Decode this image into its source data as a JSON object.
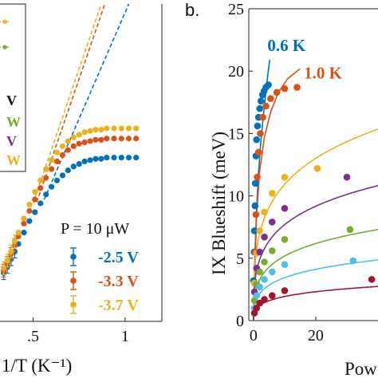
{
  "chart_data": [
    {
      "panel": "left",
      "type": "scatter",
      "xlabel": "1/T (K⁻¹)",
      "ylabel": "",
      "xlim": [
        0.32,
        1.2
      ],
      "ylim": [
        0,
        25
      ],
      "xticks": [
        {
          "value": 0.5,
          "label": ".5"
        },
        {
          "value": 1.0,
          "label": "1"
        }
      ],
      "legend_title": "P = 10 μW",
      "legend_title_color": "#111111",
      "series": [
        {
          "name": "-2.5 V",
          "color": "#0072BD",
          "x": [
            0.34,
            0.36,
            0.38,
            0.4,
            0.42,
            0.45,
            0.48,
            0.51,
            0.54,
            0.57,
            0.6,
            0.63,
            0.66,
            0.69,
            0.72,
            0.75,
            0.78,
            0.81,
            0.84,
            0.87,
            0.9,
            0.94,
            0.98,
            1.02,
            1.06
          ],
          "y": [
            3.8,
            4.3,
            4.9,
            5.5,
            6.1,
            7.0,
            7.9,
            8.6,
            9.3,
            10.0,
            10.6,
            11.1,
            11.5,
            11.9,
            12.2,
            12.4,
            12.6,
            12.7,
            12.8,
            12.8,
            12.9,
            12.9,
            12.9,
            12.9,
            12.9
          ]
        },
        {
          "name": "-3.3 V",
          "color": "#D95319",
          "x": [
            0.34,
            0.36,
            0.38,
            0.4,
            0.42,
            0.45,
            0.48,
            0.51,
            0.54,
            0.57,
            0.6,
            0.63,
            0.66,
            0.69,
            0.72,
            0.75,
            0.78,
            0.81,
            0.84,
            0.87,
            0.9,
            0.94,
            0.98,
            1.02,
            1.06
          ],
          "y": [
            4.0,
            4.6,
            5.3,
            6.0,
            6.7,
            7.7,
            8.7,
            9.6,
            10.5,
            11.3,
            12.0,
            12.6,
            13.1,
            13.5,
            13.8,
            14.0,
            14.1,
            14.2,
            14.3,
            14.3,
            14.4,
            14.4,
            14.4,
            14.4,
            14.4
          ]
        },
        {
          "name": "-3.7 V",
          "color": "#EDB120",
          "x": [
            0.34,
            0.36,
            0.38,
            0.4,
            0.42,
            0.45,
            0.48,
            0.51,
            0.54,
            0.57,
            0.6,
            0.63,
            0.66,
            0.69,
            0.72,
            0.75,
            0.78,
            0.81,
            0.84,
            0.87,
            0.9,
            0.94,
            0.98,
            1.02,
            1.06
          ],
          "y": [
            4.2,
            4.8,
            5.5,
            6.3,
            7.0,
            8.1,
            9.2,
            10.2,
            11.1,
            12.0,
            12.7,
            13.3,
            13.8,
            14.2,
            14.5,
            14.7,
            14.9,
            15.0,
            15.1,
            15.1,
            15.2,
            15.2,
            15.2,
            15.2,
            15.2
          ]
        }
      ],
      "arrhenius_fits": [
        {
          "color": "#0072BD",
          "x": [
            0.56,
            1.02
          ],
          "y": [
            9.6,
            25.0
          ]
        },
        {
          "color": "#D95319",
          "x": [
            0.52,
            0.89
          ],
          "y": [
            9.4,
            25.0
          ]
        },
        {
          "color": "#EDB120",
          "x": [
            0.5,
            0.87
          ],
          "y": [
            9.3,
            25.0
          ]
        }
      ],
      "inset_legend": {
        "items": [
          {
            "label": "V",
            "color": "#111111",
            "marker": "none",
            "value_y": 17.4
          },
          {
            "label": "W",
            "color": "#77AC30",
            "marker": "none",
            "value_y": 15.7
          },
          {
            "label": "V",
            "color": "#7E2F8E",
            "marker": "none",
            "value_y": 14.2
          },
          {
            "label": "W",
            "color": "#EDB120",
            "marker": "none",
            "value_y": 12.7
          }
        ],
        "swatches": [
          {
            "color": "#EDB120",
            "value_y": 23.6
          },
          {
            "color": "#77AC30",
            "value_y": 21.6
          }
        ]
      }
    },
    {
      "panel": "right",
      "panel_label": "b.",
      "type": "scatter",
      "xlabel": "Powe",
      "ylabel": "IX Blueshift (meV)",
      "xlim": [
        -1.5,
        40
      ],
      "ylim": [
        0,
        25
      ],
      "yticks": [
        0,
        5,
        10,
        15,
        20,
        25
      ],
      "xticks": [
        0,
        20
      ],
      "annotations": [
        {
          "text": "0.6 K",
          "color": "#0072BD",
          "x": 4.5,
          "y": 21.6
        },
        {
          "text": "1.0 K",
          "color": "#D95319",
          "x": 16.2,
          "y": 19.4
        }
      ],
      "series": [
        {
          "name": "0.6 K",
          "color": "#0072BD",
          "x": [
            0.0,
            0.2,
            0.3,
            0.5,
            0.6,
            0.8,
            1.0,
            1.3,
            1.6,
            2.0,
            2.4,
            2.9,
            3.4,
            4.0,
            4.8
          ],
          "y": [
            3.2,
            5.5,
            7.2,
            9.2,
            11.0,
            13.2,
            14.5,
            15.6,
            16.3,
            17.0,
            17.6,
            18.1,
            18.4,
            18.7,
            18.9
          ]
        },
        {
          "name": "1.0 K",
          "color": "#D95319",
          "x": [
            0.5,
            0.8,
            1.2,
            1.6,
            2.2,
            3.0,
            4.0,
            5.5,
            7.5,
            10.0,
            14.0
          ],
          "y": [
            5.5,
            8.5,
            11.5,
            13.5,
            15.0,
            16.3,
            17.2,
            17.8,
            18.3,
            18.6,
            18.7
          ]
        },
        {
          "name": "",
          "color": "#EDB120",
          "x": [
            0.3,
            1.0,
            2.0,
            3.5,
            6.0,
            10.0,
            20.5
          ],
          "y": [
            3.0,
            5.4,
            7.2,
            8.7,
            10.2,
            11.5,
            12.2
          ]
        },
        {
          "name": "",
          "color": "#7E2F8E",
          "x": [
            0.3,
            1.0,
            2.0,
            3.5,
            6.0,
            10.0,
            30.0
          ],
          "y": [
            2.3,
            4.2,
            5.5,
            6.7,
            7.9,
            9.0,
            11.5
          ]
        },
        {
          "name": "",
          "color": "#77AC30",
          "x": [
            0.3,
            1.0,
            2.0,
            3.5,
            6.0,
            10.0,
            31.0
          ],
          "y": [
            1.6,
            2.9,
            3.9,
            4.7,
            5.6,
            6.5,
            7.3
          ]
        },
        {
          "name": "",
          "color": "#4DBEEE",
          "x": [
            0.3,
            1.0,
            2.0,
            3.5,
            6.0,
            10.0,
            32.0
          ],
          "y": [
            1.0,
            2.0,
            2.7,
            3.3,
            3.9,
            4.5,
            4.8
          ]
        },
        {
          "name": "",
          "color": "#A2142F",
          "x": [
            0.3,
            1.0,
            2.0,
            3.5,
            6.0,
            10.0,
            38.0
          ],
          "y": [
            0.6,
            1.0,
            1.4,
            1.7,
            2.0,
            2.4,
            3.3
          ]
        }
      ],
      "fits": [
        {
          "color": "#0072BD",
          "type": "steep",
          "x": [
            0.0,
            0.5,
            1.0,
            1.6,
            2.3,
            3.1,
            3.9,
            4.6,
            5.2
          ],
          "y": [
            0.0,
            5.5,
            9.0,
            11.8,
            14.1,
            16.3,
            18.1,
            19.7,
            20.9
          ]
        },
        {
          "color": "#D95319",
          "type": "steep",
          "x": [
            0.0,
            1.0,
            2.0,
            3.5,
            5.5,
            8.0,
            11.0,
            15.0
          ],
          "y": [
            0.0,
            8.5,
            12.0,
            14.7,
            16.7,
            18.3,
            19.4,
            20.2
          ]
        },
        {
          "color": "#EDB120",
          "type": "log",
          "a": 8.8,
          "b": 1.12
        },
        {
          "color": "#7E2F8E",
          "type": "log",
          "a": 6.5,
          "b": 1.05
        },
        {
          "color": "#77AC30",
          "type": "log",
          "a": 4.6,
          "b": 0.98
        },
        {
          "color": "#4DBEEE",
          "type": "log",
          "a": 3.2,
          "b": 0.92
        },
        {
          "color": "#A2142F",
          "type": "log",
          "a": 1.9,
          "b": 0.85
        }
      ]
    }
  ]
}
